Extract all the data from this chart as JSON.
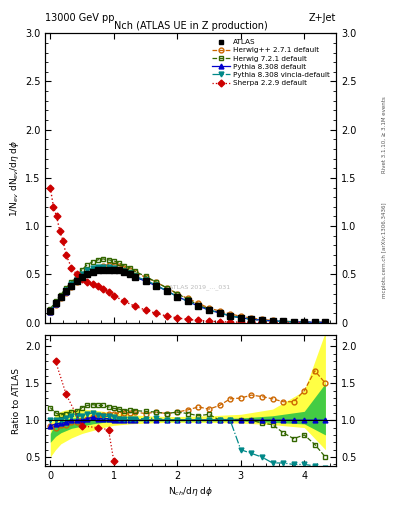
{
  "title": "Nch (ATLAS UE in Z production)",
  "header_left": "13000 GeV pp",
  "header_right": "Z+Jet",
  "right_label1": "Rivet 3.1.10, ≥ 3.1M events",
  "right_label2": "mcplots.cern.ch [arXiv:1306.3436]",
  "watermark": "ATLAS 2019_..._031",
  "ylabel_main": "1/N$_{ev}$ dN$_{ev}$/d$\\eta$ d$\\phi$",
  "ylabel_ratio": "Ratio to ATLAS",
  "xlabel": "N$_{ch}$/d$\\eta$ d$\\phi$",
  "atlas_x": [
    0.0,
    0.083,
    0.167,
    0.25,
    0.333,
    0.417,
    0.5,
    0.583,
    0.667,
    0.75,
    0.833,
    0.917,
    1.0,
    1.083,
    1.167,
    1.25,
    1.333,
    1.5,
    1.667,
    1.833,
    2.0,
    2.167,
    2.333,
    2.5,
    2.667,
    2.833,
    3.0,
    3.167,
    3.333,
    3.5,
    3.667,
    3.833,
    4.0,
    4.167,
    4.333
  ],
  "atlas_y": [
    0.12,
    0.2,
    0.27,
    0.33,
    0.38,
    0.43,
    0.47,
    0.5,
    0.52,
    0.54,
    0.55,
    0.55,
    0.55,
    0.54,
    0.52,
    0.5,
    0.47,
    0.43,
    0.38,
    0.33,
    0.27,
    0.22,
    0.17,
    0.13,
    0.1,
    0.07,
    0.05,
    0.035,
    0.025,
    0.017,
    0.012,
    0.008,
    0.005,
    0.003,
    0.002
  ],
  "herwig271_x": [
    0.0,
    0.083,
    0.167,
    0.25,
    0.333,
    0.417,
    0.5,
    0.583,
    0.667,
    0.75,
    0.833,
    0.917,
    1.0,
    1.083,
    1.167,
    1.25,
    1.333,
    1.5,
    1.667,
    1.833,
    2.0,
    2.167,
    2.333,
    2.5,
    2.667,
    2.833,
    3.0,
    3.167,
    3.333,
    3.5,
    3.667,
    3.833,
    4.0,
    4.167,
    4.333
  ],
  "herwig271_y": [
    0.11,
    0.18,
    0.25,
    0.31,
    0.37,
    0.42,
    0.47,
    0.51,
    0.54,
    0.57,
    0.59,
    0.6,
    0.6,
    0.59,
    0.57,
    0.55,
    0.52,
    0.47,
    0.42,
    0.36,
    0.3,
    0.25,
    0.2,
    0.15,
    0.12,
    0.09,
    0.065,
    0.047,
    0.033,
    0.022,
    0.015,
    0.01,
    0.007,
    0.005,
    0.003
  ],
  "herwig721_x": [
    0.0,
    0.083,
    0.167,
    0.25,
    0.333,
    0.417,
    0.5,
    0.583,
    0.667,
    0.75,
    0.833,
    0.917,
    1.0,
    1.083,
    1.167,
    1.25,
    1.333,
    1.5,
    1.667,
    1.833,
    2.0,
    2.167,
    2.333,
    2.5,
    2.667,
    2.833,
    3.0,
    3.167,
    3.333,
    3.5,
    3.667,
    3.833,
    4.0,
    4.167,
    4.333
  ],
  "herwig721_y": [
    0.14,
    0.22,
    0.29,
    0.36,
    0.42,
    0.48,
    0.55,
    0.6,
    0.63,
    0.65,
    0.66,
    0.65,
    0.64,
    0.62,
    0.59,
    0.57,
    0.53,
    0.48,
    0.42,
    0.36,
    0.3,
    0.24,
    0.18,
    0.14,
    0.1,
    0.07,
    0.05,
    0.035,
    0.024,
    0.016,
    0.01,
    0.006,
    0.004,
    0.002,
    0.001
  ],
  "pythia8308_x": [
    0.0,
    0.083,
    0.167,
    0.25,
    0.333,
    0.417,
    0.5,
    0.583,
    0.667,
    0.75,
    0.833,
    0.917,
    1.0,
    1.083,
    1.167,
    1.25,
    1.333,
    1.5,
    1.667,
    1.833,
    2.0,
    2.167,
    2.333,
    2.5,
    2.667,
    2.833,
    3.0,
    3.167,
    3.333,
    3.5,
    3.667,
    3.833,
    4.0,
    4.167,
    4.333
  ],
  "pythia8308_y": [
    0.11,
    0.19,
    0.26,
    0.32,
    0.38,
    0.43,
    0.47,
    0.51,
    0.54,
    0.55,
    0.56,
    0.56,
    0.55,
    0.54,
    0.52,
    0.5,
    0.47,
    0.43,
    0.38,
    0.33,
    0.27,
    0.22,
    0.17,
    0.13,
    0.1,
    0.07,
    0.05,
    0.035,
    0.025,
    0.017,
    0.012,
    0.008,
    0.005,
    0.003,
    0.002
  ],
  "pythia_vincia_x": [
    0.0,
    0.083,
    0.167,
    0.25,
    0.333,
    0.417,
    0.5,
    0.583,
    0.667,
    0.75,
    0.833,
    0.917,
    1.0,
    1.083,
    1.167,
    1.25,
    1.333,
    1.5,
    1.667,
    1.833,
    2.0,
    2.167,
    2.333,
    2.5,
    2.667,
    2.833,
    3.0,
    3.167,
    3.333,
    3.5,
    3.667,
    3.833,
    4.0,
    4.167,
    4.333
  ],
  "pythia_vincia_y": [
    0.12,
    0.2,
    0.27,
    0.34,
    0.4,
    0.45,
    0.5,
    0.54,
    0.57,
    0.58,
    0.58,
    0.58,
    0.57,
    0.55,
    0.53,
    0.51,
    0.48,
    0.44,
    0.39,
    0.33,
    0.27,
    0.22,
    0.17,
    0.13,
    0.1,
    0.07,
    0.05,
    0.035,
    0.025,
    0.017,
    0.012,
    0.008,
    0.005,
    0.003,
    0.002
  ],
  "sherpa_x": [
    0.0,
    0.05,
    0.1,
    0.15,
    0.2,
    0.25,
    0.333,
    0.417,
    0.5,
    0.583,
    0.667,
    0.75,
    0.833,
    0.917,
    1.0,
    1.167,
    1.333,
    1.5,
    1.667,
    1.833,
    2.0,
    2.167,
    2.333,
    2.5,
    2.667,
    2.833,
    3.0,
    3.5,
    4.0
  ],
  "sherpa_y": [
    1.4,
    1.2,
    1.1,
    0.95,
    0.85,
    0.7,
    0.57,
    0.5,
    0.45,
    0.42,
    0.4,
    0.38,
    0.35,
    0.32,
    0.28,
    0.22,
    0.17,
    0.13,
    0.095,
    0.068,
    0.048,
    0.033,
    0.022,
    0.014,
    0.009,
    0.006,
    0.004,
    0.001,
    0.0003
  ],
  "ratio_x": [
    0.0,
    0.083,
    0.167,
    0.25,
    0.333,
    0.417,
    0.5,
    0.583,
    0.667,
    0.75,
    0.833,
    0.917,
    1.0,
    1.083,
    1.167,
    1.25,
    1.333,
    1.5,
    1.667,
    1.833,
    2.0,
    2.167,
    2.333,
    2.5,
    2.667,
    2.833,
    3.0,
    3.167,
    3.333,
    3.5,
    3.667,
    3.833,
    4.0,
    4.167,
    4.333
  ],
  "ratio_herwig271": [
    0.92,
    0.9,
    0.93,
    0.94,
    0.97,
    0.98,
    1.0,
    1.02,
    1.04,
    1.06,
    1.07,
    1.09,
    1.09,
    1.09,
    1.1,
    1.1,
    1.11,
    1.09,
    1.11,
    1.09,
    1.11,
    1.14,
    1.18,
    1.15,
    1.2,
    1.29,
    1.3,
    1.34,
    1.32,
    1.29,
    1.25,
    1.25,
    1.4,
    1.67,
    1.5
  ],
  "ratio_herwig721": [
    1.17,
    1.1,
    1.07,
    1.09,
    1.11,
    1.12,
    1.17,
    1.2,
    1.21,
    1.2,
    1.2,
    1.18,
    1.16,
    1.15,
    1.13,
    1.14,
    1.13,
    1.12,
    1.11,
    1.09,
    1.11,
    1.09,
    1.06,
    1.08,
    1.0,
    1.0,
    1.0,
    1.0,
    0.96,
    0.94,
    0.83,
    0.75,
    0.8,
    0.67,
    0.5
  ],
  "ratio_pythia8308": [
    0.92,
    0.95,
    0.96,
    0.97,
    1.0,
    1.0,
    1.0,
    1.02,
    1.04,
    1.02,
    1.02,
    1.02,
    1.0,
    1.0,
    1.0,
    1.0,
    1.0,
    1.0,
    1.0,
    1.0,
    1.0,
    1.0,
    1.0,
    1.0,
    1.0,
    1.0,
    1.0,
    1.0,
    1.0,
    1.0,
    1.0,
    1.0,
    1.0,
    1.0,
    1.0
  ],
  "ratio_vincia": [
    1.0,
    1.0,
    1.0,
    1.03,
    1.05,
    1.05,
    1.06,
    1.08,
    1.1,
    1.07,
    1.05,
    1.05,
    1.04,
    1.02,
    1.02,
    1.02,
    1.02,
    1.02,
    1.03,
    1.0,
    1.0,
    1.0,
    1.0,
    1.0,
    1.0,
    1.0,
    0.6,
    0.55,
    0.5,
    0.42,
    0.42,
    0.4,
    0.4,
    0.38,
    0.35
  ],
  "ratio_sherpa_x": [
    0.0,
    0.083,
    0.25,
    0.5,
    0.75,
    0.917,
    1.0
  ],
  "ratio_sherpa_y": [
    null,
    1.8,
    1.35,
    0.92,
    0.9,
    0.87,
    0.45
  ],
  "yellow_band_x": [
    0.0,
    0.083,
    0.167,
    0.25,
    0.333,
    0.5,
    0.667,
    0.833,
    1.0,
    1.25,
    1.5,
    1.833,
    2.0,
    2.5,
    3.0,
    3.5,
    4.0,
    4.333
  ],
  "yellow_band_low": [
    0.5,
    0.6,
    0.68,
    0.72,
    0.76,
    0.82,
    0.86,
    0.9,
    0.93,
    0.95,
    0.96,
    0.97,
    0.97,
    0.97,
    0.96,
    0.94,
    0.9,
    0.6
  ],
  "yellow_band_high": [
    0.95,
    1.08,
    1.12,
    1.14,
    1.15,
    1.15,
    1.14,
    1.12,
    1.1,
    1.08,
    1.06,
    1.05,
    1.05,
    1.06,
    1.08,
    1.15,
    1.4,
    2.2
  ],
  "green_band_x": [
    0.0,
    0.083,
    0.167,
    0.25,
    0.333,
    0.5,
    0.667,
    0.833,
    1.0,
    1.25,
    1.5,
    1.833,
    2.0,
    2.5,
    3.0,
    3.5,
    4.0,
    4.333
  ],
  "green_band_low": [
    0.7,
    0.78,
    0.83,
    0.86,
    0.89,
    0.92,
    0.95,
    0.97,
    0.98,
    0.99,
    0.99,
    0.99,
    0.99,
    0.99,
    0.99,
    0.97,
    0.95,
    0.8
  ],
  "green_band_high": [
    0.82,
    0.95,
    1.0,
    1.02,
    1.03,
    1.04,
    1.04,
    1.04,
    1.03,
    1.02,
    1.02,
    1.02,
    1.02,
    1.02,
    1.03,
    1.06,
    1.12,
    1.5
  ],
  "colors": {
    "atlas": "#000000",
    "herwig271": "#cc6600",
    "herwig721": "#336600",
    "pythia8308": "#0000cc",
    "pythia_vincia": "#008888",
    "sherpa": "#cc0000",
    "yellow_band": "#ffff44",
    "green_band": "#44cc44"
  },
  "main_xlim": [
    -0.08,
    4.5
  ],
  "main_ylim": [
    0,
    3.0
  ],
  "ratio_ylim": [
    0.38,
    2.15
  ],
  "main_yticks": [
    0,
    0.5,
    1.0,
    1.5,
    2.0,
    2.5,
    3.0
  ],
  "ratio_yticks": [
    0.5,
    1.0,
    1.5,
    2.0
  ],
  "xticks": [
    0,
    1,
    2,
    3,
    4
  ]
}
